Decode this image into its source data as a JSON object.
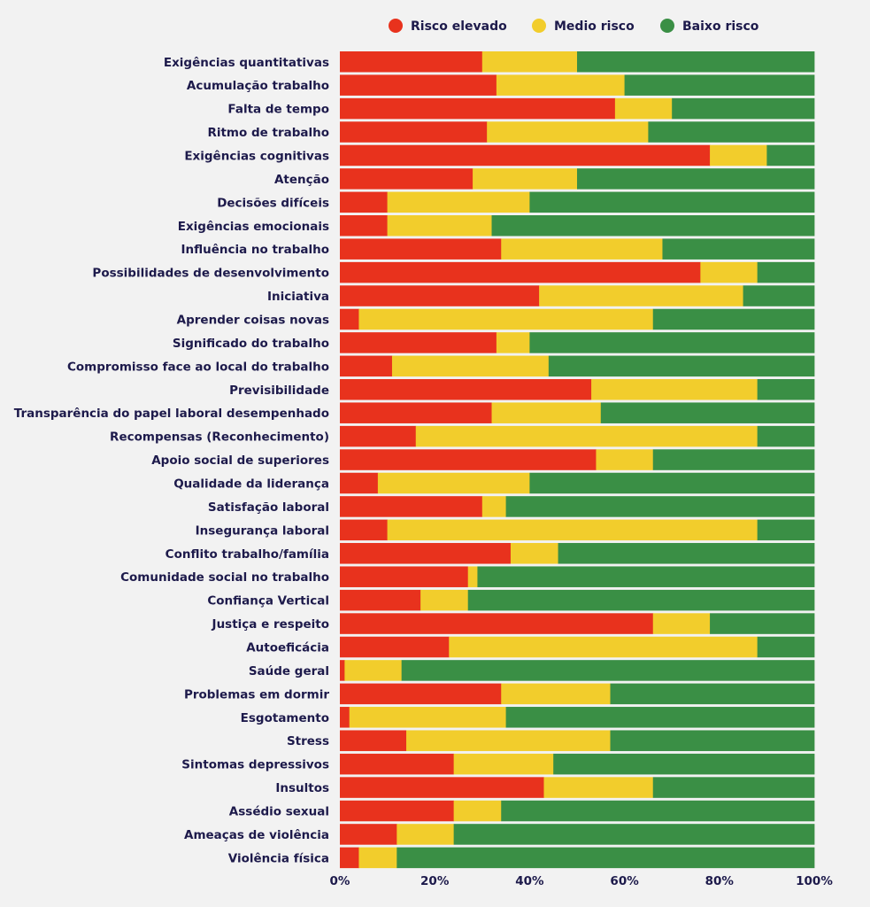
{
  "chart_data": {
    "type": "bar",
    "orientation": "horizontal",
    "stacked": true,
    "legend_position": "top",
    "grid": false,
    "xlim": [
      0,
      100
    ],
    "x_ticks": [
      "0%",
      "20%",
      "40%",
      "60%",
      "80%",
      "100%"
    ],
    "categories": [
      "Exigências quantitativas",
      "Acumulação trabalho",
      "Falta de tempo",
      "Ritmo de trabalho",
      "Exigências cognitivas",
      "Atenção",
      "Decisões difíceis",
      "Exigências emocionais",
      "Influência no trabalho",
      "Possibilidades de desenvolvimento",
      "Iniciativa",
      "Aprender coisas novas",
      "Significado do trabalho",
      "Compromisso face ao local do trabalho",
      "Previsibilidade",
      "Transparência do papel laboral desempenhado",
      "Recompensas (Reconhecimento)",
      "Apoio social de superiores",
      "Qualidade da liderança",
      "Satisfação laboral",
      "Insegurança laboral",
      "Conflito trabalho/família",
      "Comunidade social no trabalho",
      "Confiança Vertical",
      "Justiça e respeito",
      "Autoeficácia",
      "Saúde geral",
      "Problemas em dormir",
      "Esgotamento",
      "Stress",
      "Sintomas depressivos",
      "Insultos",
      "Assédio sexual",
      "Ameaças de violência",
      "Violência física"
    ],
    "series": [
      {
        "name": "Risco elevado",
        "color": "#e8321d",
        "values": [
          30,
          33,
          58,
          31,
          78,
          28,
          10,
          10,
          34,
          76,
          42,
          4,
          33,
          11,
          53,
          32,
          16,
          54,
          8,
          30,
          10,
          36,
          27,
          17,
          66,
          23,
          1,
          34,
          2,
          14,
          24,
          43,
          24,
          12,
          4
        ]
      },
      {
        "name": "Medio risco",
        "color": "#f2cd2c",
        "values": [
          20,
          27,
          12,
          34,
          12,
          22,
          30,
          22,
          34,
          12,
          43,
          62,
          7,
          33,
          35,
          23,
          72,
          12,
          32,
          5,
          78,
          10,
          2,
          10,
          12,
          65,
          12,
          23,
          33,
          43,
          21,
          23,
          10,
          12,
          8
        ]
      },
      {
        "name": "Baixo risco",
        "color": "#3a8f45",
        "values": [
          50,
          40,
          30,
          35,
          10,
          50,
          60,
          68,
          32,
          12,
          15,
          34,
          60,
          56,
          12,
          45,
          12,
          34,
          60,
          65,
          12,
          54,
          71,
          73,
          22,
          12,
          87,
          43,
          65,
          43,
          55,
          34,
          66,
          76,
          88
        ]
      }
    ]
  }
}
